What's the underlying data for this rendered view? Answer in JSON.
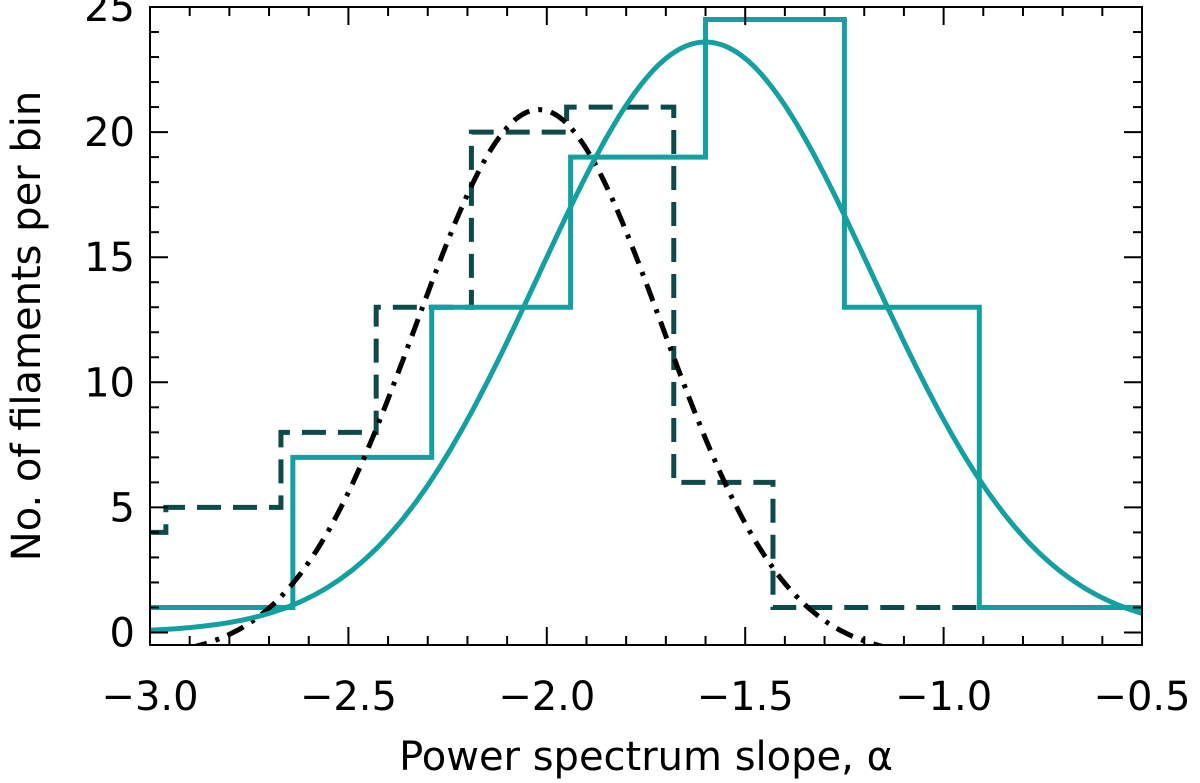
{
  "chart_data": {
    "type": "line",
    "xlabel": "Power spectrum slope, α",
    "ylabel": "No. of filaments per bin",
    "xlim": [
      -3.0,
      -0.5
    ],
    "ylim": [
      -0.5,
      25.0
    ],
    "x_ticks": [
      -3.0,
      -2.5,
      -2.0,
      -1.5,
      -1.0,
      -0.5
    ],
    "x_tick_labels": [
      "−3.0",
      "−2.5",
      "−2.0",
      "−1.5",
      "−1.0",
      "−0.5"
    ],
    "y_ticks": [
      0,
      5,
      10,
      15,
      20,
      25
    ],
    "y_tick_labels": [
      "0",
      "5",
      "10",
      "15",
      "20",
      "25"
    ],
    "grid": false,
    "series": [
      {
        "style": "histogram-dashed",
        "color": "#0f4a4a",
        "bin_edges": [
          -3.0,
          -2.96,
          -2.67,
          -2.43,
          -2.19,
          -1.95,
          -1.68,
          -1.43,
          -0.8
        ],
        "values": [
          4,
          5,
          8,
          13,
          20,
          21,
          6,
          1
        ]
      },
      {
        "style": "histogram-solid",
        "color": "#14a0a0",
        "bin_edges": [
          -3.0,
          -2.64,
          -2.29,
          -1.94,
          -1.6,
          -1.25,
          -0.91,
          -0.5
        ],
        "values": [
          1,
          7,
          13,
          19,
          24.5,
          13,
          1
        ]
      },
      {
        "style": "gaussian-dashdot",
        "color": "#000000",
        "amplitude": 21.9,
        "mean": -2.02,
        "sigma": 0.31,
        "offset": -1.0
      },
      {
        "style": "gaussian-solid",
        "color": "#14a0a0",
        "amplitude": 23.6,
        "mean": -1.6,
        "sigma": 0.42,
        "offset": 0.0
      }
    ]
  }
}
